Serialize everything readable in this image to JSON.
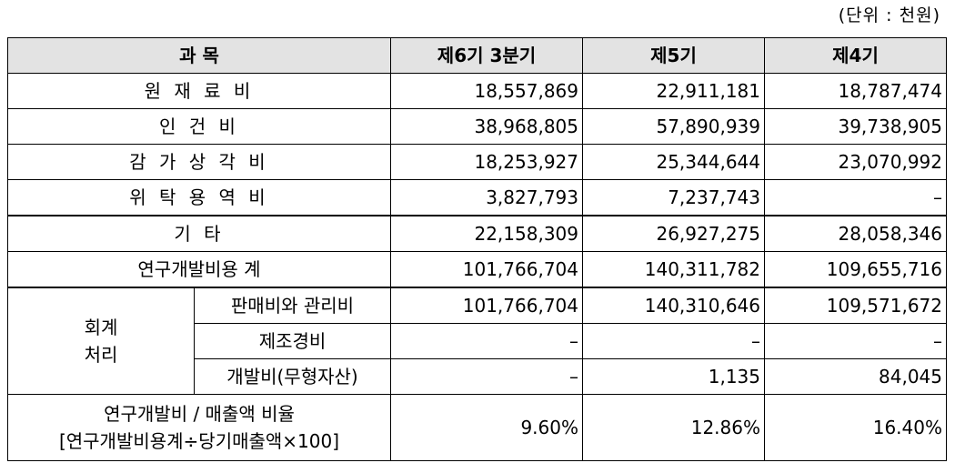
{
  "unit_note": "(단위 : 천원)",
  "header": {
    "item": "과 목",
    "col1": "제6기 3분기",
    "col2": "제5기",
    "col3": "제4기"
  },
  "rows": [
    {
      "label": "원 재 료 비",
      "v1": "18,557,869",
      "v2": "22,911,181",
      "v3": "18,787,474"
    },
    {
      "label": "인 건 비",
      "v1": "38,968,805",
      "v2": "57,890,939",
      "v3": "39,738,905"
    },
    {
      "label": "감 가 상 각 비",
      "v1": "18,253,927",
      "v2": "25,344,644",
      "v3": "23,070,992"
    },
    {
      "label": "위 탁 용 역 비",
      "v1": "3,827,793",
      "v2": "7,237,743",
      "v3": "–"
    },
    {
      "label": "기 타",
      "v1": "22,158,309",
      "v2": "26,927,275",
      "v3": "28,058,346"
    },
    {
      "label": "연구개발비용 계",
      "v1": "101,766,704",
      "v2": "140,311,782",
      "v3": "109,655,716"
    }
  ],
  "accounting": {
    "category_line1": "회계",
    "category_line2": "처리",
    "rows": [
      {
        "label": "판매비와 관리비",
        "v1": "101,766,704",
        "v2": "140,310,646",
        "v3": "109,571,672"
      },
      {
        "label": "제조경비",
        "v1": "–",
        "v2": "–",
        "v3": "–"
      },
      {
        "label": "개발비(무형자산)",
        "v1": "–",
        "v2": "1,135",
        "v3": "84,045"
      }
    ]
  },
  "ratio": {
    "label_line1": "연구개발비 / 매출액 비율",
    "label_line2": "[연구개발비용계÷당기매출액×100]",
    "v1": "9.60%",
    "v2": "12.86%",
    "v3": "16.40%"
  }
}
